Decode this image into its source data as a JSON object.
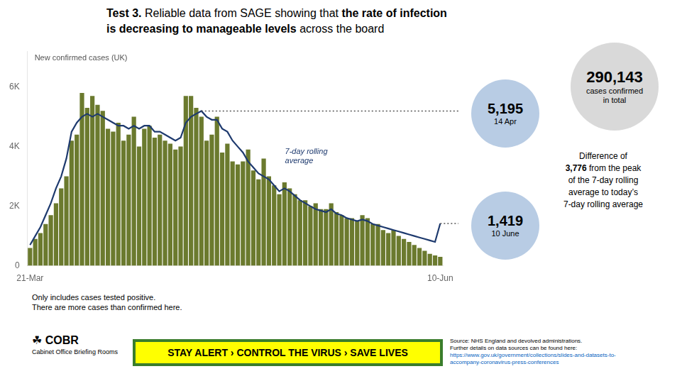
{
  "chart_data": {
    "type": "bar",
    "title": [
      "Test 3. Reliable data from SAGE showing that the rate of infection",
      "is decreasing to manageable levels across the board"
    ],
    "title_bold": [
      "Test 3.",
      "the rate of infection",
      "is decreasing to manageable levels"
    ],
    "categories": [
      "21-Mar",
      null,
      null,
      null,
      null,
      null,
      null,
      null,
      null,
      null,
      null,
      null,
      null,
      null,
      null,
      null,
      null,
      null,
      null,
      null,
      null,
      null,
      null,
      null,
      null,
      null,
      null,
      null,
      null,
      null,
      null,
      null,
      null,
      null,
      null,
      null,
      null,
      null,
      null,
      null,
      null,
      null,
      null,
      null,
      null,
      null,
      null,
      null,
      null,
      null,
      null,
      null,
      null,
      null,
      null,
      null,
      null,
      null,
      null,
      null,
      null,
      null,
      null,
      null,
      null,
      null,
      null,
      null,
      null,
      null,
      null,
      null,
      null,
      null,
      null,
      null,
      null,
      null,
      null,
      "10-Jun"
    ],
    "series": [
      {
        "name": "New confirmed cases (UK)",
        "type": "bar",
        "color": "#6b7a2e",
        "values": [
          600,
          900,
          1100,
          1400,
          1700,
          2100,
          2600,
          3000,
          4200,
          4400,
          5800,
          5300,
          5700,
          5400,
          5200,
          4600,
          4500,
          4800,
          4200,
          4400,
          5000,
          4000,
          4600,
          4700,
          4300,
          4400,
          4200,
          4100,
          3900,
          4000,
          5700,
          5700,
          5300,
          5000,
          4200,
          4400,
          5000,
          3800,
          4100,
          3500,
          3400,
          3500,
          3900,
          3200,
          2900,
          3600,
          3000,
          2700,
          2400,
          2800,
          2600,
          2400,
          2200,
          2200,
          2000,
          2100,
          1900,
          1900,
          2100,
          1800,
          1700,
          1600,
          1600,
          1500,
          1700,
          1600,
          1400,
          1400,
          1200,
          1100,
          1200,
          1000,
          900,
          800,
          700,
          600,
          500,
          400,
          350,
          300
        ]
      },
      {
        "name": "7-day rolling\naverage",
        "type": "line",
        "color": "#1e3a6e",
        "values": [
          700,
          1000,
          1300,
          1700,
          2100,
          2600,
          3000,
          3600,
          4500,
          4800,
          5000,
          5100,
          5000,
          5100,
          5000,
          4900,
          4800,
          4700,
          4700,
          4600,
          4700,
          4600,
          4700,
          4700,
          4500,
          4500,
          4400,
          4300,
          4200,
          4300,
          4800,
          5000,
          5100,
          5195,
          5000,
          4900,
          4900,
          4600,
          4500,
          4200,
          4000,
          3800,
          3500,
          3300,
          3100,
          3000,
          2900,
          2700,
          2500,
          2600,
          2500,
          2350,
          2200,
          2100,
          2000,
          1900,
          1850,
          1800,
          1900,
          1750,
          1700,
          1600,
          1550,
          1500,
          1550,
          1500,
          1400,
          1350,
          1300,
          1250,
          1200,
          1150,
          1100,
          1050,
          1000,
          950,
          900,
          850,
          800,
          1419
        ]
      }
    ],
    "ylim": [
      0,
      7200
    ],
    "yticks": [
      0,
      {
        "value": 2000,
        "label": "2K"
      },
      {
        "value": 4000,
        "label": "4K"
      },
      {
        "value": 6000,
        "label": "6K"
      }
    ],
    "grid": false,
    "reference_lines": [
      {
        "value": 5195,
        "start": 33,
        "color": "#555555",
        "line_style": "dotted"
      },
      {
        "value": 1419,
        "start": 79,
        "color": "#555555",
        "line_style": "dotted"
      }
    ],
    "callouts": [
      {
        "value": 5195,
        "label": "5,195",
        "text": "14 Apr",
        "color": "#b8cce4"
      },
      {
        "value": 1419,
        "label": "1,419",
        "text": "10 June",
        "color": "#b8cce4"
      },
      {
        "value": 290143,
        "label": "290,143",
        "text": "cases confirmed\nin total",
        "color": "#d9d9d9"
      }
    ],
    "difference": {
      "value": 3776,
      "label": "3,776",
      "text_before": "Difference of",
      "text_after": " from the peak\nof the 7-day rolling\naverage to today’s\n7-day rolling average"
    },
    "footnotes": [
      "Only includes cases tested positive.",
      "There are more cases than confirmed here."
    ],
    "source": [
      "Source: NHS England and devolved administrations.",
      "Further details on data sources can be found here:"
    ],
    "source_url": {
      "text": "https://www.gov.uk/government/collections/slides-and-datasets-to-\naccompany-coronavirus-press-conferences",
      "color": "#0563C1"
    },
    "logo": [
      "☘ COBR",
      "Cabinet Office Briefing Rooms"
    ],
    "banner": {
      "text": "STAY ALERT › CONTROL THE VIRUS › SAVE LIVES",
      "colors": [
        "#ffff00",
        "#3a7d2c"
      ]
    }
  }
}
